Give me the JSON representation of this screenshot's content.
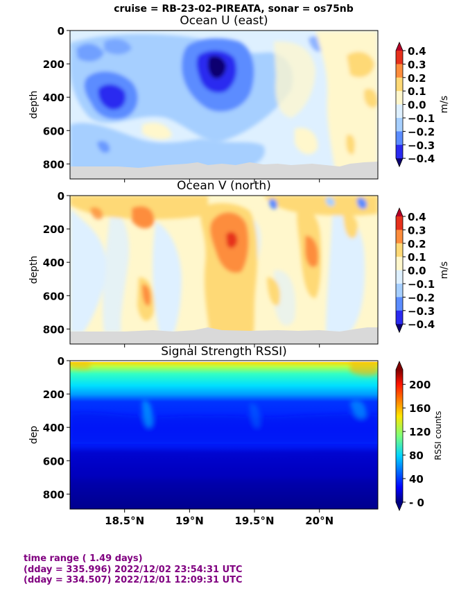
{
  "suptitle": "cruise = RB-23-02-PIREATA,  sonar = os75nb",
  "x_ticks": [
    "18.5°N",
    "19°N",
    "19.5°N",
    "20°N"
  ],
  "panels": [
    {
      "title": "Ocean U (east)",
      "ylabel": "depth",
      "y_ticks": [
        "0",
        "200",
        "400",
        "600",
        "800"
      ],
      "colorbar": {
        "label": "m/s",
        "tick_labels": [
          "0.4",
          "0.3",
          "0.2",
          "0.1",
          "0.0",
          "−0.1",
          "−0.2",
          "−0.3",
          "−0.4"
        ],
        "colors": [
          "#b40026",
          "#e6311c",
          "#fd8d3c",
          "#fed976",
          "#fff7cc",
          "#def0ff",
          "#a6cfff",
          "#5b8cff",
          "#2a2af0",
          "#0c0070"
        ]
      }
    },
    {
      "title": "Ocean V (north)",
      "ylabel": "depth",
      "y_ticks": [
        "0",
        "200",
        "400",
        "600",
        "800"
      ],
      "colorbar": {
        "label": "m/s",
        "tick_labels": [
          "0.4",
          "0.3",
          "0.2",
          "0.1",
          "0.0",
          "−0.1",
          "−0.2",
          "−0.3",
          "−0.4"
        ],
        "colors": [
          "#b40026",
          "#e6311c",
          "#fd8d3c",
          "#fed976",
          "#fff7cc",
          "#def0ff",
          "#a6cfff",
          "#5b8cff",
          "#2a2af0",
          "#0c0070"
        ]
      }
    },
    {
      "title": "Signal Strength RSSI)",
      "ylabel": "dep",
      "y_ticks": [
        "0",
        "200",
        "400",
        "600",
        "800"
      ],
      "colorbar": {
        "label": "RSSI counts",
        "tick_labels": [
          "200",
          "160",
          "120",
          "80",
          "40",
          "0"
        ]
      }
    }
  ],
  "footer": {
    "line1": "time range ( 1.49 days)",
    "line2": "(dday = 335.996) 2022/12/02 23:54:31 UTC",
    "line3": "(dday = 334.507) 2022/12/01 12:09:31 UTC"
  },
  "chart_data": [
    {
      "type": "heatmap",
      "title": "Ocean U (east)",
      "ylabel": "depth",
      "x_range_deg_N": [
        18.08,
        20.45
      ],
      "y_range": [
        890,
        0
      ],
      "y_ticks": [
        0,
        200,
        400,
        600,
        800
      ],
      "colorbar_ticks": [
        0.4,
        0.3,
        0.2,
        0.1,
        0.0,
        -0.1,
        -0.2,
        -0.3,
        -0.4
      ],
      "colorbar_range": [
        -0.4,
        0.4
      ],
      "features": [
        {
          "x": 18.45,
          "depth": 430,
          "value": -0.3
        },
        {
          "x": 19.2,
          "depth": 230,
          "value": -0.38
        },
        {
          "x": 19.85,
          "depth": 350,
          "value": -0.1
        },
        {
          "x": 20.35,
          "depth": 300,
          "value": 0.12
        }
      ]
    },
    {
      "type": "heatmap",
      "title": "Ocean V (north)",
      "ylabel": "depth",
      "x_range_deg_N": [
        18.08,
        20.45
      ],
      "y_range": [
        890,
        0
      ],
      "y_ticks": [
        0,
        200,
        400,
        600,
        800
      ],
      "colorbar_ticks": [
        0.4,
        0.3,
        0.2,
        0.1,
        0.0,
        -0.1,
        -0.2,
        -0.3,
        -0.4
      ],
      "colorbar_range": [
        -0.4,
        0.4
      ],
      "features": [
        {
          "x": 19.32,
          "depth": 270,
          "value": 0.34
        },
        {
          "x": 18.72,
          "depth": 120,
          "value": 0.2
        },
        {
          "x": 19.95,
          "depth": 380,
          "value": 0.2
        },
        {
          "x": 20.35,
          "depth": 60,
          "value": -0.3
        }
      ]
    },
    {
      "type": "heatmap",
      "title": "Signal Strength RSSI)",
      "ylabel": "dep",
      "x_range_deg_N": [
        18.08,
        20.45
      ],
      "y_range": [
        890,
        0
      ],
      "y_ticks": [
        0,
        200,
        400,
        600,
        800
      ],
      "colorbar_label": "RSSI counts",
      "colorbar_ticks": [
        200,
        160,
        120,
        80,
        40,
        0
      ],
      "colorbar_range": [
        0,
        225
      ],
      "profile_depth": [
        20,
        60,
        120,
        180,
        220,
        260,
        350,
        450,
        550,
        650,
        800
      ],
      "profile_rssi": [
        150,
        105,
        95,
        80,
        50,
        28,
        25,
        32,
        22,
        12,
        6
      ]
    }
  ]
}
